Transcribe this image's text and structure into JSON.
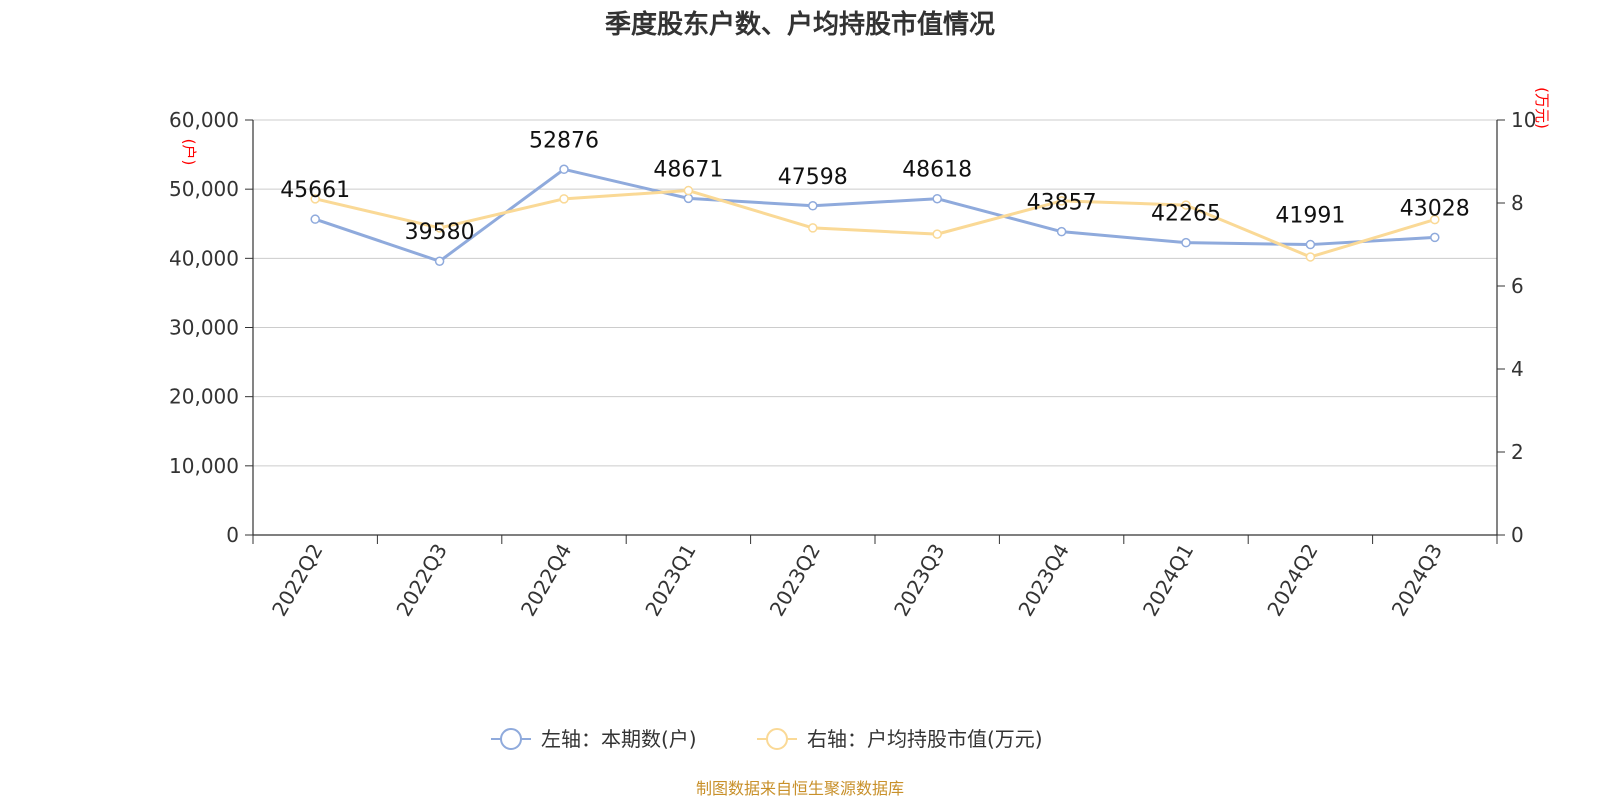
{
  "chart_data": {
    "type": "line",
    "title": "季度股东户数、户均持股市值情况",
    "categories": [
      "2022Q2",
      "2022Q3",
      "2022Q4",
      "2023Q1",
      "2023Q2",
      "2023Q3",
      "2023Q4",
      "2024Q1",
      "2024Q2",
      "2024Q3"
    ],
    "left_axis": {
      "unit_label": "(户)",
      "ylim": [
        0,
        60000
      ],
      "ticks": [
        "0",
        "10,000",
        "20,000",
        "30,000",
        "40,000",
        "50,000",
        "60,000"
      ]
    },
    "right_axis": {
      "unit_label": "(万元)",
      "ylim": [
        0,
        10
      ],
      "ticks": [
        "0",
        "2",
        "4",
        "6",
        "8",
        "10"
      ]
    },
    "grid": true,
    "legend_position": "bottom-center",
    "series": [
      {
        "name": "左轴：本期数(户)",
        "axis": "left",
        "color": "#8faadc",
        "values": [
          45661,
          39580,
          52876,
          48671,
          47598,
          48618,
          43857,
          42265,
          41991,
          43028
        ],
        "labels": [
          "45661",
          "39580",
          "52876",
          "48671",
          "47598",
          "48618",
          "43857",
          "42265",
          "41991",
          "43028"
        ]
      },
      {
        "name": "右轴：户均持股市值(万元)",
        "axis": "right",
        "color": "#fad996",
        "values": [
          8.1,
          7.4,
          8.1,
          8.3,
          7.4,
          7.25,
          8.05,
          7.95,
          6.7,
          7.6
        ]
      }
    ],
    "source": "制图数据来自恒生聚源数据库"
  }
}
